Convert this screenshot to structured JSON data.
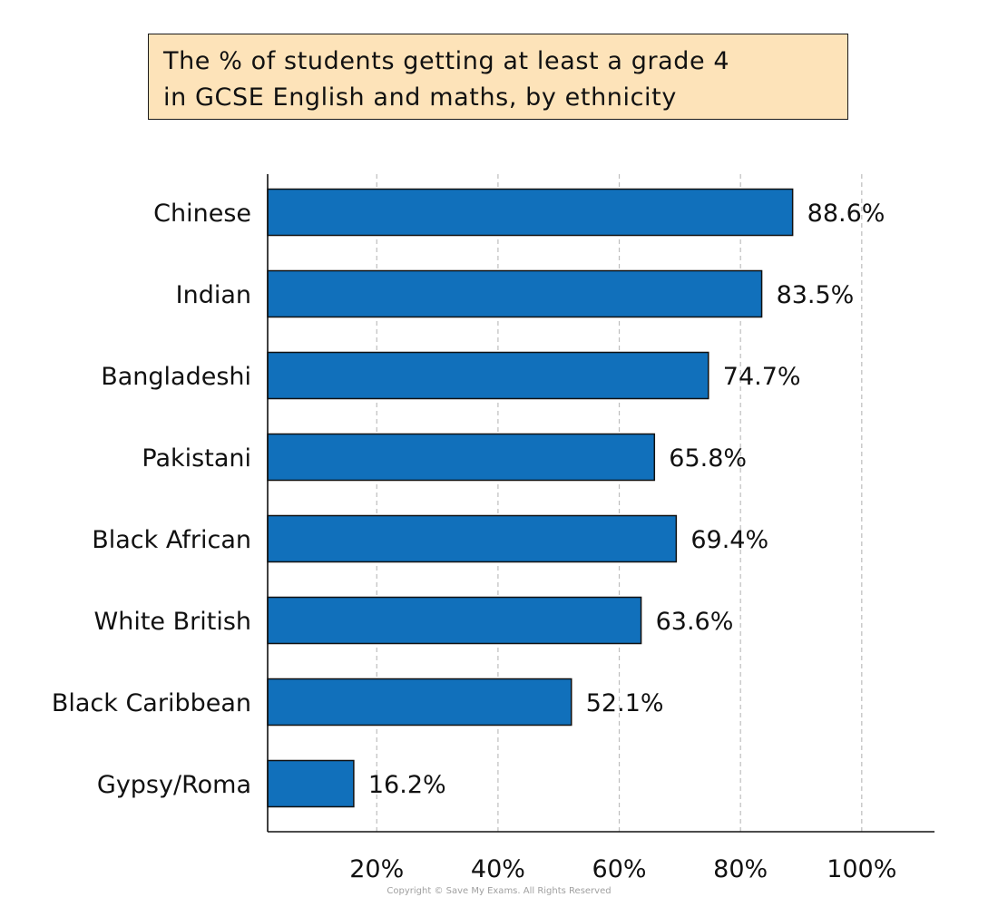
{
  "chart_data": {
    "type": "bar",
    "orientation": "horizontal",
    "title": "The % of students getting at least a grade 4\nin GCSE English and maths, by ethnicity",
    "categories": [
      "Chinese",
      "Indian",
      "Bangladeshi",
      "Pakistani",
      "Black African",
      "White British",
      "Black Caribbean",
      "Gypsy/Roma"
    ],
    "values": [
      88.6,
      83.5,
      74.7,
      65.8,
      69.4,
      63.6,
      52.1,
      16.2
    ],
    "value_labels": [
      "88.6%",
      "83.5%",
      "74.7%",
      "65.8%",
      "69.4%",
      "63.6%",
      "52.1%",
      "16.2%"
    ],
    "x_ticks": [
      20,
      40,
      60,
      80,
      100
    ],
    "x_tick_labels": [
      "20%",
      "40%",
      "60%",
      "80%",
      "100%"
    ],
    "xlim": [
      2,
      112
    ],
    "grid": "vertical dashed",
    "bar_color": "#1170bb",
    "title_background": "#fde3b9"
  },
  "copyright": "Copyright © Save My Exams. All Rights Reserved"
}
